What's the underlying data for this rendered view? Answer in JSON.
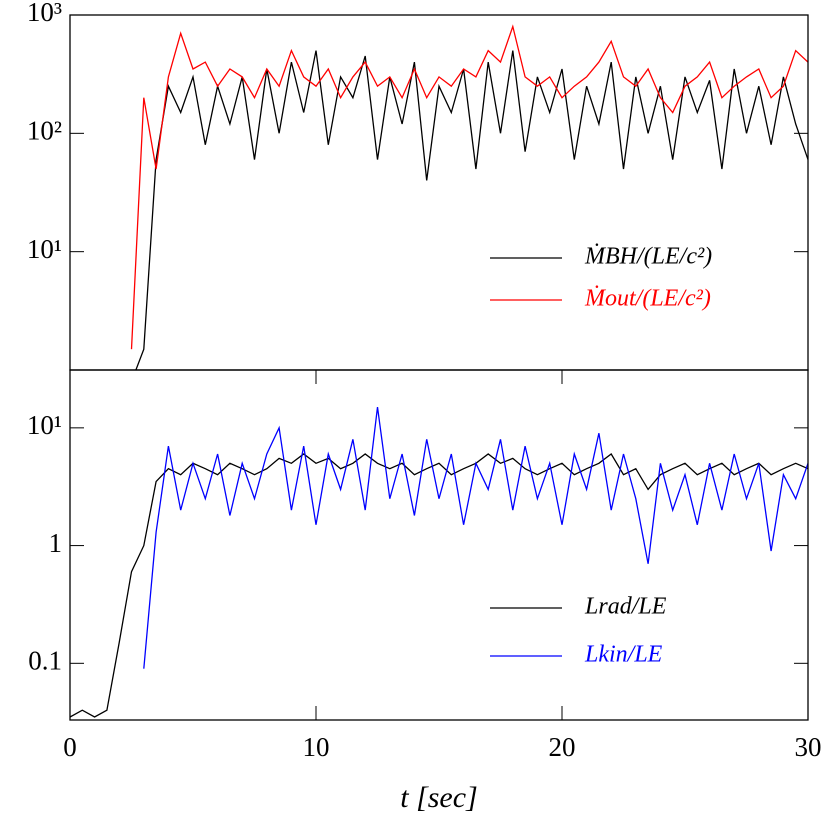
{
  "chart_data": [
    {
      "type": "line",
      "scale": "log",
      "x": [
        0,
        0.5,
        1,
        1.5,
        2,
        2.5,
        3,
        3.5,
        4,
        4.5,
        5,
        5.5,
        6,
        6.5,
        7,
        7.5,
        8,
        8.5,
        9,
        9.5,
        10,
        10.5,
        11,
        11.5,
        12,
        12.5,
        13,
        13.5,
        14,
        14.5,
        15,
        15.5,
        16,
        16.5,
        17,
        17.5,
        18,
        18.5,
        19,
        19.5,
        20,
        20.5,
        21,
        21.5,
        22,
        22.5,
        23,
        23.5,
        24,
        24.5,
        25,
        25.5,
        26,
        26.5,
        27,
        27.5,
        28,
        28.5,
        29,
        29.5,
        30
      ],
      "xlim": [
        0,
        30
      ],
      "ylim": [
        1,
        1000
      ],
      "yticks": [
        {
          "value": 10,
          "label": "10¹"
        },
        {
          "value": 100,
          "label": "10²"
        },
        {
          "value": 1000,
          "label": "10³"
        }
      ],
      "legend": "lower right",
      "series": [
        {
          "name": "ṀBH/(LE/c²)",
          "color": "#000000",
          "values": [
            null,
            null,
            null,
            null,
            null,
            0.8,
            1.5,
            60,
            250,
            150,
            300,
            80,
            250,
            120,
            300,
            60,
            350,
            100,
            400,
            150,
            500,
            80,
            300,
            200,
            450,
            60,
            300,
            120,
            400,
            40,
            250,
            150,
            350,
            50,
            400,
            100,
            500,
            70,
            300,
            150,
            350,
            60,
            250,
            120,
            400,
            50,
            300,
            100,
            250,
            60,
            300,
            150,
            280,
            50,
            350,
            100,
            250,
            80,
            300,
            120,
            60
          ]
        },
        {
          "name": "Ṁout/(LE/c²)",
          "color": "#ff0000",
          "values": [
            null,
            null,
            null,
            null,
            null,
            1.5,
            200,
            50,
            300,
            700,
            350,
            400,
            250,
            350,
            300,
            200,
            350,
            250,
            500,
            300,
            250,
            350,
            200,
            300,
            400,
            250,
            300,
            200,
            350,
            200,
            300,
            250,
            350,
            300,
            500,
            400,
            800,
            300,
            250,
            300,
            200,
            250,
            300,
            400,
            600,
            300,
            250,
            350,
            200,
            150,
            250,
            300,
            400,
            200,
            250,
            300,
            350,
            200,
            250,
            500,
            400
          ]
        }
      ]
    },
    {
      "type": "line",
      "scale": "log",
      "x": [
        0,
        0.5,
        1,
        1.5,
        2,
        2.5,
        3,
        3.5,
        4,
        4.5,
        5,
        5.5,
        6,
        6.5,
        7,
        7.5,
        8,
        8.5,
        9,
        9.5,
        10,
        10.5,
        11,
        11.5,
        12,
        12.5,
        13,
        13.5,
        14,
        14.5,
        15,
        15.5,
        16,
        16.5,
        17,
        17.5,
        18,
        18.5,
        19,
        19.5,
        20,
        20.5,
        21,
        21.5,
        22,
        22.5,
        23,
        23.5,
        24,
        24.5,
        25,
        25.5,
        26,
        26.5,
        27,
        27.5,
        28,
        28.5,
        29,
        29.5,
        30
      ],
      "xlim": [
        0,
        30
      ],
      "xticks": [
        0,
        10,
        20,
        30
      ],
      "xlabel": "t [sec]",
      "ylim": [
        0.033,
        31
      ],
      "yticks": [
        0.1,
        1,
        {
          "value": 10,
          "label": "10¹"
        }
      ],
      "legend": "lower right",
      "series": [
        {
          "name": "Lrad/LE",
          "color": "#000000",
          "values": [
            0.035,
            0.04,
            0.035,
            0.04,
            0.15,
            0.6,
            1.0,
            3.5,
            4.5,
            4,
            5,
            4.5,
            4,
            5,
            4.5,
            4,
            4.5,
            5.5,
            5,
            6,
            5,
            5.5,
            4.5,
            5,
            6,
            5,
            4.5,
            5,
            4,
            4.5,
            5,
            4,
            4.5,
            5,
            6,
            5,
            5.5,
            4.5,
            4,
            4.5,
            5,
            4,
            4.5,
            5,
            6,
            4,
            4.5,
            3,
            4,
            4.5,
            5,
            4,
            4.5,
            5,
            4,
            4.5,
            5,
            4,
            4.5,
            5,
            4.5
          ]
        },
        {
          "name": "Lkin/LE",
          "color": "#0000ff",
          "values": [
            null,
            null,
            null,
            null,
            null,
            null,
            0.09,
            1.3,
            7,
            2,
            5,
            2.5,
            6,
            1.8,
            5,
            2.5,
            6,
            10,
            2,
            7,
            1.5,
            6,
            3,
            8,
            2,
            15,
            2.5,
            6,
            1.8,
            8,
            2.5,
            6,
            1.5,
            5,
            3,
            8,
            2,
            7,
            2.5,
            5,
            1.5,
            6,
            3,
            9,
            2,
            6,
            2.5,
            0.7,
            5,
            2,
            4,
            1.5,
            5,
            2,
            6,
            2.5,
            5,
            0.9,
            4,
            2.5,
            5
          ]
        }
      ]
    }
  ]
}
